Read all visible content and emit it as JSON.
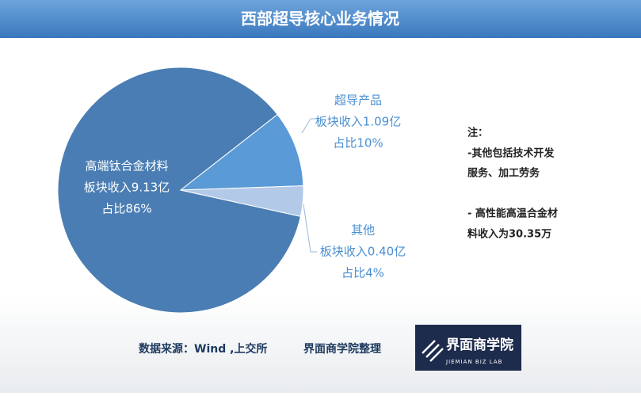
{
  "chart_data": {
    "type": "pie",
    "title": "西部超导核心业务情况",
    "categories": [
      "高端钛合金材料",
      "超导产品",
      "其他"
    ],
    "values": [
      86,
      10,
      4
    ],
    "value_labels": [
      "占比86%",
      "占比10%",
      "占比4%"
    ],
    "revenue_labels": [
      "板块收入9.13亿",
      "板块收入1.09亿",
      "板块收入0.40亿"
    ],
    "colors": [
      "#4a7db3",
      "#5a9ad6",
      "#b3c9e8"
    ],
    "notes": [
      "注：",
      "-其他包括技术开发",
      "服务、加工劳务",
      "- 高性能高温合金材",
      "料收入为30.35万"
    ],
    "source": "数据来源：Wind ,上交所",
    "credit": "界面商学院整理",
    "logo": {
      "name": "界面商学院",
      "subtitle": "JIEMIAN BIZ LAB"
    }
  }
}
